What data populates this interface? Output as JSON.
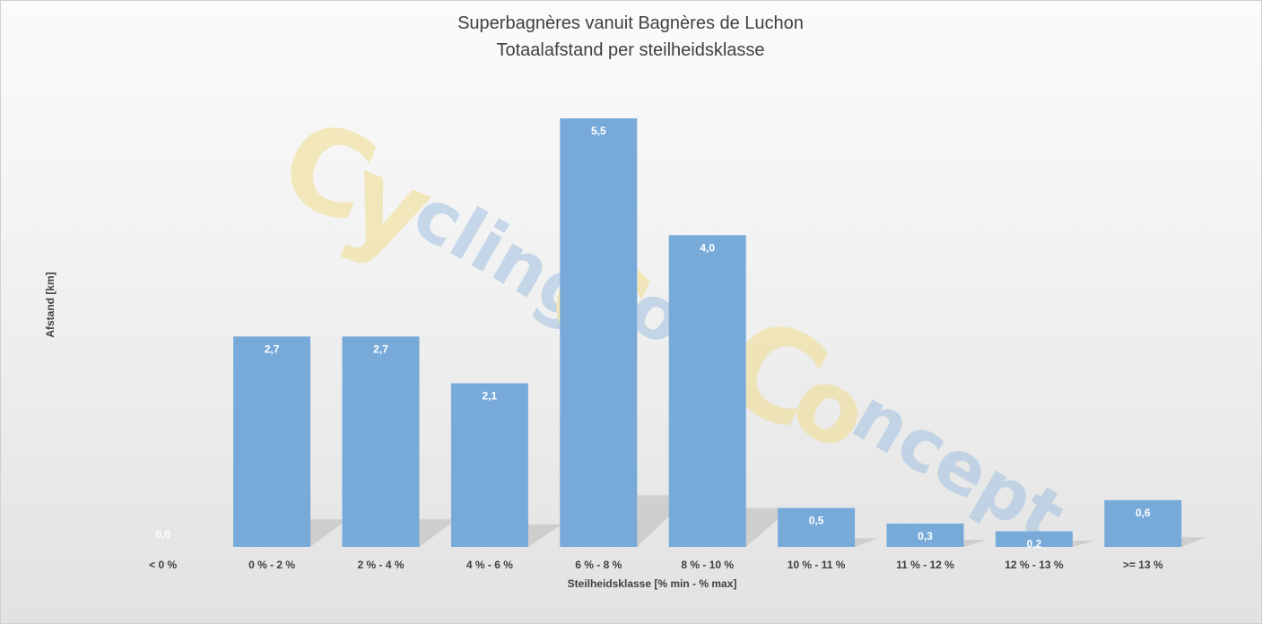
{
  "chart_data": {
    "type": "bar",
    "title": "Superbagnères vanuit Bagnères de Luchon",
    "subtitle": "Totaalafstand per steilheidsklasse",
    "xlabel": "Steilheidsklasse [% min - % max]",
    "ylabel": "Afstand [km]",
    "categories": [
      "< 0 %",
      "0 % - 2 %",
      "2 % - 4 %",
      "4 % - 6 %",
      "6 % - 8 %",
      "8 % - 10 %",
      "10 % - 11 %",
      "11 % - 12 %",
      "12 % - 13 %",
      ">= 13 %"
    ],
    "values": [
      0.0,
      2.7,
      2.7,
      2.1,
      5.5,
      4.0,
      0.5,
      0.3,
      0.2,
      0.6
    ],
    "data_labels": [
      "0,0",
      "2,7",
      "2,7",
      "2,1",
      "5,5",
      "4,0",
      "0,5",
      "0,3",
      "0,2",
      "0,6"
    ],
    "ylim": [
      0,
      5.8
    ],
    "grid": false,
    "legend": "none",
    "bar_color": "#77aad9",
    "watermark": {
      "big_letters": [
        "C",
        "y",
        "C",
        "C",
        "o"
      ],
      "small_parts": [
        "cling",
        "ols",
        "ncept"
      ],
      "yellow": "#f0dc8a",
      "blue": "#9fc0df"
    }
  }
}
